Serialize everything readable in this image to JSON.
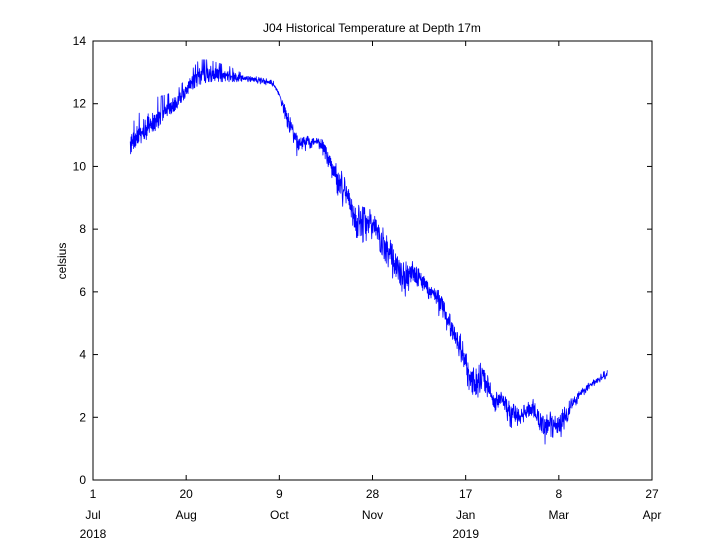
{
  "chart_data": {
    "type": "line",
    "title": "J04 Historical Temperature at Depth 17m",
    "xlabel": "",
    "ylabel": "celsius",
    "ylim": [
      0,
      14
    ],
    "yticks": [
      0,
      2,
      4,
      6,
      8,
      10,
      12,
      14
    ],
    "xlim": [
      "2018-07-01",
      "2019-04-27"
    ],
    "xticks": [
      {
        "date": "2018-07-01",
        "day": "1",
        "month": "Jul",
        "year": "2018"
      },
      {
        "date": "2018-08-20",
        "day": "20",
        "month": "Aug",
        "year": ""
      },
      {
        "date": "2018-10-09",
        "day": "9",
        "month": "Oct",
        "year": ""
      },
      {
        "date": "2018-11-28",
        "day": "28",
        "month": "Nov",
        "year": ""
      },
      {
        "date": "2019-01-17",
        "day": "17",
        "month": "Jan",
        "year": "2019"
      },
      {
        "date": "2019-03-08",
        "day": "8",
        "month": "Mar",
        "year": ""
      },
      {
        "date": "2019-04-27",
        "day": "27",
        "month": "Apr",
        "year": ""
      }
    ],
    "grid": false,
    "legend": false,
    "color": "#0000ff",
    "series": [
      {
        "name": "",
        "points": [
          {
            "x": "2018-07-21",
            "y": 10.7,
            "lo": 10.4,
            "hi": 11.3
          },
          {
            "x": "2018-07-25",
            "y": 11.0,
            "lo": 10.7,
            "hi": 11.6
          },
          {
            "x": "2018-07-29",
            "y": 11.2,
            "lo": 10.9,
            "hi": 12.1
          },
          {
            "x": "2018-08-04",
            "y": 11.5,
            "lo": 11.2,
            "hi": 12.2
          },
          {
            "x": "2018-08-10",
            "y": 11.8,
            "lo": 11.6,
            "hi": 12.3
          },
          {
            "x": "2018-08-16",
            "y": 12.1,
            "lo": 11.9,
            "hi": 12.5
          },
          {
            "x": "2018-08-22",
            "y": 12.6,
            "lo": 12.4,
            "hi": 13.0
          },
          {
            "x": "2018-08-27",
            "y": 12.9,
            "lo": 12.6,
            "hi": 13.4
          },
          {
            "x": "2018-09-01",
            "y": 13.0,
            "lo": 12.7,
            "hi": 13.4
          },
          {
            "x": "2018-09-06",
            "y": 12.9,
            "lo": 12.7,
            "hi": 13.3
          },
          {
            "x": "2018-09-12",
            "y": 12.9,
            "lo": 12.7,
            "hi": 13.2
          },
          {
            "x": "2018-09-18",
            "y": 12.8,
            "lo": 12.7,
            "hi": 13.0
          },
          {
            "x": "2018-09-24",
            "y": 12.8,
            "lo": 12.7,
            "hi": 12.9
          },
          {
            "x": "2018-10-01",
            "y": 12.7,
            "lo": 12.6,
            "hi": 12.8
          },
          {
            "x": "2018-10-05",
            "y": 12.7,
            "lo": 12.6,
            "hi": 12.8
          },
          {
            "x": "2018-10-09",
            "y": 12.3,
            "lo": 12.2,
            "hi": 12.4
          },
          {
            "x": "2018-10-13",
            "y": 11.6,
            "lo": 11.3,
            "hi": 11.8
          },
          {
            "x": "2018-10-16",
            "y": 11.2,
            "lo": 10.9,
            "hi": 11.4
          },
          {
            "x": "2018-10-19",
            "y": 10.7,
            "lo": 10.2,
            "hi": 10.9
          },
          {
            "x": "2018-10-23",
            "y": 10.8,
            "lo": 10.5,
            "hi": 11.0
          },
          {
            "x": "2018-10-26",
            "y": 10.8,
            "lo": 10.6,
            "hi": 10.9
          },
          {
            "x": "2018-10-30",
            "y": 10.8,
            "lo": 10.6,
            "hi": 10.9
          },
          {
            "x": "2018-11-03",
            "y": 10.5,
            "lo": 10.2,
            "hi": 10.8
          },
          {
            "x": "2018-11-07",
            "y": 9.9,
            "lo": 9.5,
            "hi": 10.2
          },
          {
            "x": "2018-11-11",
            "y": 9.4,
            "lo": 8.8,
            "hi": 9.9
          },
          {
            "x": "2018-11-15",
            "y": 9.0,
            "lo": 8.5,
            "hi": 9.4
          },
          {
            "x": "2018-11-19",
            "y": 8.2,
            "lo": 7.2,
            "hi": 8.8
          },
          {
            "x": "2018-11-23",
            "y": 8.2,
            "lo": 7.6,
            "hi": 8.7
          },
          {
            "x": "2018-11-28",
            "y": 8.2,
            "lo": 7.7,
            "hi": 8.6
          },
          {
            "x": "2018-12-03",
            "y": 7.8,
            "lo": 7.2,
            "hi": 8.2
          },
          {
            "x": "2018-12-08",
            "y": 7.2,
            "lo": 6.6,
            "hi": 7.6
          },
          {
            "x": "2018-12-13",
            "y": 6.4,
            "lo": 5.6,
            "hi": 6.9
          },
          {
            "x": "2018-12-18",
            "y": 6.6,
            "lo": 6.1,
            "hi": 7.0
          },
          {
            "x": "2018-12-23",
            "y": 6.5,
            "lo": 6.2,
            "hi": 6.9
          },
          {
            "x": "2018-12-28",
            "y": 6.1,
            "lo": 5.8,
            "hi": 6.4
          },
          {
            "x": "2019-01-02",
            "y": 5.8,
            "lo": 5.3,
            "hi": 6.1
          },
          {
            "x": "2019-01-06",
            "y": 5.2,
            "lo": 4.9,
            "hi": 5.6
          },
          {
            "x": "2019-01-10",
            "y": 4.7,
            "lo": 4.3,
            "hi": 5.1
          },
          {
            "x": "2019-01-14",
            "y": 4.3,
            "lo": 3.9,
            "hi": 4.7
          },
          {
            "x": "2019-01-18",
            "y": 3.5,
            "lo": 3.0,
            "hi": 3.9
          },
          {
            "x": "2019-01-22",
            "y": 2.9,
            "lo": 2.4,
            "hi": 3.5
          },
          {
            "x": "2019-01-26",
            "y": 3.4,
            "lo": 3.0,
            "hi": 3.8
          },
          {
            "x": "2019-01-29",
            "y": 3.0,
            "lo": 2.6,
            "hi": 3.3
          },
          {
            "x": "2019-02-01",
            "y": 2.4,
            "lo": 2.0,
            "hi": 2.8
          },
          {
            "x": "2019-02-05",
            "y": 2.6,
            "lo": 2.3,
            "hi": 2.8
          },
          {
            "x": "2019-02-10",
            "y": 2.2,
            "lo": 1.7,
            "hi": 2.5
          },
          {
            "x": "2019-02-14",
            "y": 2.0,
            "lo": 1.5,
            "hi": 2.3
          },
          {
            "x": "2019-02-18",
            "y": 2.1,
            "lo": 1.8,
            "hi": 2.4
          },
          {
            "x": "2019-02-22",
            "y": 2.3,
            "lo": 1.9,
            "hi": 2.6
          },
          {
            "x": "2019-02-25",
            "y": 1.8,
            "lo": 1.3,
            "hi": 2.2
          },
          {
            "x": "2019-02-28",
            "y": 1.6,
            "lo": 1.1,
            "hi": 2.0
          },
          {
            "x": "2019-03-04",
            "y": 1.9,
            "lo": 1.4,
            "hi": 2.2
          },
          {
            "x": "2019-03-08",
            "y": 1.7,
            "lo": 1.2,
            "hi": 2.1
          },
          {
            "x": "2019-03-12",
            "y": 2.1,
            "lo": 1.8,
            "hi": 2.4
          },
          {
            "x": "2019-03-16",
            "y": 2.5,
            "lo": 2.3,
            "hi": 2.7
          },
          {
            "x": "2019-03-20",
            "y": 2.8,
            "lo": 2.6,
            "hi": 2.9
          },
          {
            "x": "2019-03-24",
            "y": 3.0,
            "lo": 2.9,
            "hi": 3.1
          },
          {
            "x": "2019-03-28",
            "y": 3.15,
            "lo": 3.05,
            "hi": 3.25
          },
          {
            "x": "2019-04-01",
            "y": 3.3,
            "lo": 3.2,
            "hi": 3.45
          },
          {
            "x": "2019-04-03",
            "y": 3.35,
            "lo": 3.25,
            "hi": 3.5
          }
        ]
      }
    ]
  }
}
